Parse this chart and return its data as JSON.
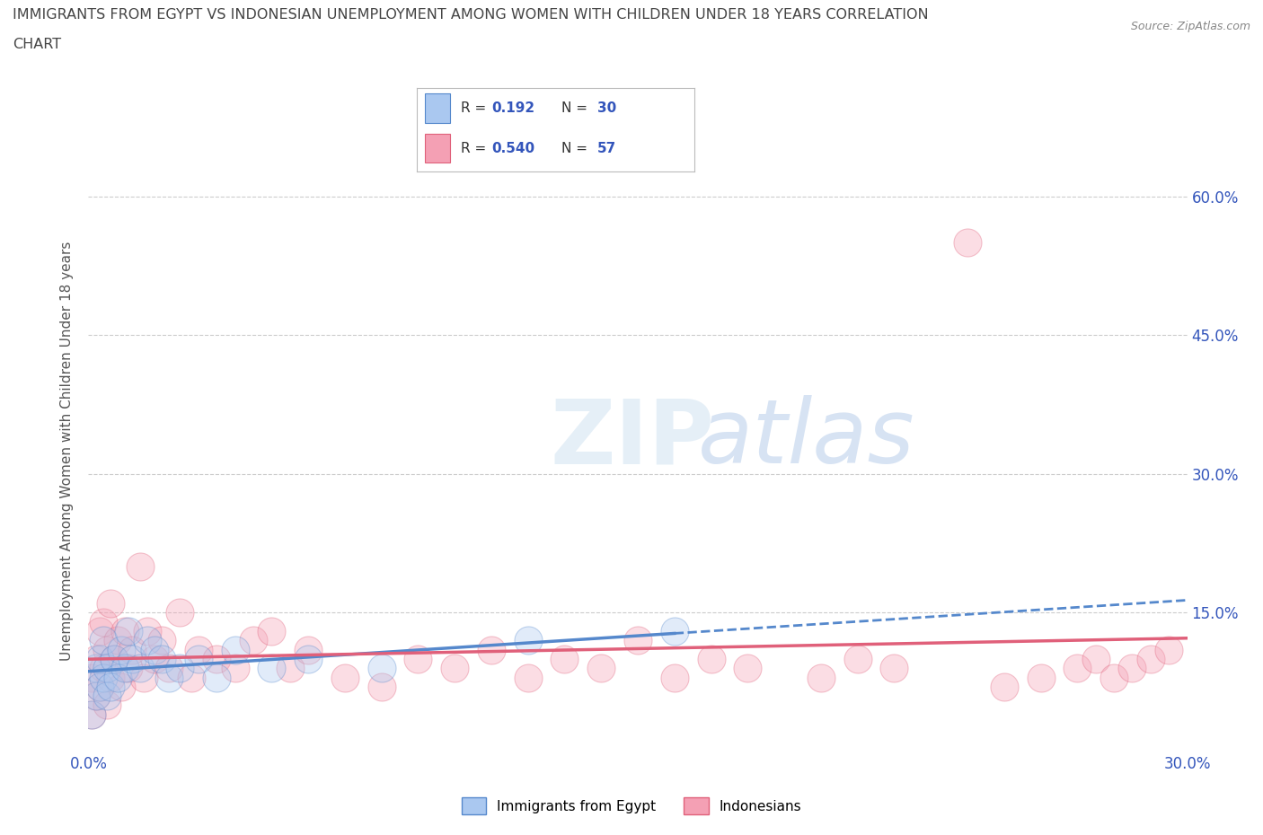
{
  "title_line1": "IMMIGRANTS FROM EGYPT VS INDONESIAN UNEMPLOYMENT AMONG WOMEN WITH CHILDREN UNDER 18 YEARS CORRELATION",
  "title_line2": "CHART",
  "source": "Source: ZipAtlas.com",
  "ylabel": "Unemployment Among Women with Children Under 18 years",
  "xlim": [
    0.0,
    0.3
  ],
  "ylim": [
    0.0,
    0.65
  ],
  "xticks": [
    0.0,
    0.3
  ],
  "xticklabels": [
    "0.0%",
    "30.0%"
  ],
  "ytick_positions": [
    0.15,
    0.3,
    0.45,
    0.6
  ],
  "ytick_labels": [
    "15.0%",
    "30.0%",
    "45.0%",
    "60.0%"
  ],
  "egypt_R": 0.192,
  "egypt_N": 30,
  "indo_R": 0.54,
  "indo_N": 57,
  "egypt_color": "#aac8f0",
  "indo_color": "#f4a0b4",
  "egypt_line_color": "#5588cc",
  "indo_line_color": "#e0607a",
  "legend_egypt_label": "Immigrants from Egypt",
  "legend_indo_label": "Indonesians",
  "watermark_zip": "ZIP",
  "watermark_atlas": "atlas",
  "background_color": "#ffffff",
  "grid_color": "#cccccc",
  "title_color": "#444444",
  "axis_label_color": "#555555",
  "tick_color": "#3355bb",
  "right_tick_color": "#3355bb",
  "egypt_scatter_x": [
    0.001,
    0.002,
    0.002,
    0.003,
    0.003,
    0.004,
    0.004,
    0.005,
    0.005,
    0.006,
    0.007,
    0.008,
    0.009,
    0.01,
    0.011,
    0.012,
    0.014,
    0.016,
    0.018,
    0.02,
    0.022,
    0.025,
    0.03,
    0.035,
    0.04,
    0.05,
    0.06,
    0.08,
    0.12,
    0.16
  ],
  "egypt_scatter_y": [
    0.04,
    0.06,
    0.09,
    0.07,
    0.1,
    0.08,
    0.12,
    0.06,
    0.09,
    0.07,
    0.1,
    0.08,
    0.11,
    0.09,
    0.13,
    0.1,
    0.09,
    0.12,
    0.11,
    0.1,
    0.08,
    0.09,
    0.1,
    0.08,
    0.11,
    0.09,
    0.1,
    0.09,
    0.12,
    0.13
  ],
  "indo_scatter_x": [
    0.001,
    0.001,
    0.002,
    0.002,
    0.003,
    0.003,
    0.004,
    0.004,
    0.005,
    0.005,
    0.006,
    0.006,
    0.007,
    0.008,
    0.009,
    0.01,
    0.011,
    0.012,
    0.014,
    0.015,
    0.016,
    0.018,
    0.02,
    0.022,
    0.025,
    0.028,
    0.03,
    0.035,
    0.04,
    0.045,
    0.05,
    0.055,
    0.06,
    0.07,
    0.08,
    0.09,
    0.1,
    0.11,
    0.12,
    0.13,
    0.14,
    0.15,
    0.16,
    0.17,
    0.18,
    0.2,
    0.21,
    0.22,
    0.24,
    0.25,
    0.26,
    0.27,
    0.275,
    0.28,
    0.285,
    0.29,
    0.295
  ],
  "indo_scatter_y": [
    0.04,
    0.08,
    0.06,
    0.1,
    0.07,
    0.13,
    0.09,
    0.14,
    0.05,
    0.11,
    0.08,
    0.16,
    0.1,
    0.12,
    0.07,
    0.13,
    0.09,
    0.11,
    0.2,
    0.08,
    0.13,
    0.1,
    0.12,
    0.09,
    0.15,
    0.08,
    0.11,
    0.1,
    0.09,
    0.12,
    0.13,
    0.09,
    0.11,
    0.08,
    0.07,
    0.1,
    0.09,
    0.11,
    0.08,
    0.1,
    0.09,
    0.12,
    0.08,
    0.1,
    0.09,
    0.08,
    0.1,
    0.09,
    0.55,
    0.07,
    0.08,
    0.09,
    0.1,
    0.08,
    0.09,
    0.1,
    0.11
  ]
}
